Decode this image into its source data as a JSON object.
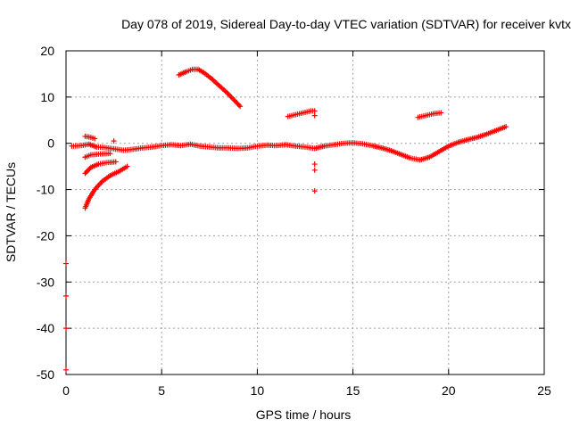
{
  "chart_data": {
    "type": "scatter",
    "title": "Day 078 of 2019, Sidereal Day-to-day VTEC variation (SDTVAR) for receiver kvtx",
    "xlabel": "GPS time / hours",
    "ylabel": "SDTVAR / TECUs",
    "xlim": [
      0,
      25
    ],
    "ylim": [
      -50,
      20
    ],
    "xticks": [
      "0",
      "5",
      "10",
      "15",
      "20",
      "25"
    ],
    "yticks": [
      "20",
      "10",
      "0",
      "-10",
      "-20",
      "-30",
      "-40",
      "-50"
    ],
    "grid": true,
    "marker": "+",
    "color": "#ff0000",
    "series": [
      {
        "name": "main-band",
        "points": [
          [
            0.3,
            -0.6
          ],
          [
            0.8,
            -0.5
          ],
          [
            1.2,
            -0.2
          ],
          [
            1.6,
            -0.8
          ],
          [
            2.0,
            -0.9
          ],
          [
            2.5,
            -1.2
          ],
          [
            3.0,
            -1.5
          ],
          [
            3.5,
            -1.3
          ],
          [
            4.0,
            -1.0
          ],
          [
            4.5,
            -0.8
          ],
          [
            5.0,
            -0.5
          ],
          [
            5.5,
            -0.3
          ],
          [
            6.0,
            -0.5
          ],
          [
            6.5,
            -0.2
          ],
          [
            7.0,
            -0.6
          ],
          [
            7.5,
            -0.8
          ],
          [
            8.0,
            -1.0
          ],
          [
            8.5,
            -1.0
          ],
          [
            9.0,
            -1.1
          ],
          [
            9.5,
            -1.0
          ],
          [
            10.0,
            -0.6
          ],
          [
            10.5,
            -0.4
          ],
          [
            11.0,
            -0.5
          ],
          [
            11.5,
            -0.3
          ],
          [
            12.0,
            -0.6
          ],
          [
            12.5,
            -0.8
          ],
          [
            13.0,
            -1.1
          ],
          [
            13.5,
            -0.6
          ],
          [
            14.0,
            -0.3
          ],
          [
            14.5,
            0.0
          ],
          [
            15.0,
            0.1
          ],
          [
            15.5,
            -0.1
          ],
          [
            16.0,
            -0.5
          ],
          [
            16.5,
            -1.0
          ],
          [
            17.0,
            -1.6
          ],
          [
            17.5,
            -2.4
          ],
          [
            18.0,
            -3.2
          ],
          [
            18.5,
            -3.6
          ],
          [
            19.0,
            -3.0
          ],
          [
            19.5,
            -1.8
          ],
          [
            20.0,
            -0.6
          ],
          [
            20.5,
            0.2
          ],
          [
            21.0,
            0.8
          ],
          [
            21.5,
            1.3
          ],
          [
            22.0,
            2.0
          ],
          [
            22.5,
            2.8
          ],
          [
            23.0,
            3.6
          ]
        ]
      },
      {
        "name": "arc-high",
        "points": [
          [
            5.9,
            14.8
          ],
          [
            6.3,
            15.5
          ],
          [
            6.6,
            16.0
          ],
          [
            6.9,
            16.0
          ],
          [
            7.2,
            15.3
          ],
          [
            7.6,
            14.0
          ],
          [
            8.0,
            12.5
          ],
          [
            8.4,
            11.0
          ],
          [
            8.8,
            9.3
          ],
          [
            9.1,
            8.0
          ]
        ]
      },
      {
        "name": "segment-mid",
        "points": [
          [
            11.6,
            5.8
          ],
          [
            12.0,
            6.2
          ],
          [
            12.4,
            6.6
          ],
          [
            12.8,
            7.0
          ],
          [
            13.0,
            7.0
          ]
        ]
      },
      {
        "name": "segment-right",
        "points": [
          [
            18.4,
            5.6
          ],
          [
            18.8,
            6.0
          ],
          [
            19.2,
            6.4
          ],
          [
            19.6,
            6.6
          ]
        ]
      },
      {
        "name": "rising-arcs",
        "points": [
          [
            1.0,
            -14.0
          ],
          [
            1.2,
            -12.0
          ],
          [
            1.5,
            -10.0
          ],
          [
            1.9,
            -8.2
          ],
          [
            2.3,
            -7.0
          ],
          [
            2.8,
            -6.0
          ],
          [
            3.2,
            -5.0
          ],
          [
            1.0,
            -6.5
          ],
          [
            1.3,
            -5.2
          ],
          [
            1.7,
            -4.5
          ],
          [
            2.1,
            -4.2
          ],
          [
            2.6,
            -4.0
          ],
          [
            1.0,
            -3.0
          ],
          [
            1.3,
            -2.5
          ],
          [
            1.8,
            -2.3
          ],
          [
            2.3,
            -2.2
          ],
          [
            1.0,
            1.5
          ],
          [
            1.3,
            1.3
          ],
          [
            1.5,
            1.0
          ]
        ]
      },
      {
        "name": "outliers",
        "points": [
          [
            0.0,
            -26.0
          ],
          [
            0.0,
            -33.0
          ],
          [
            0.0,
            -40.0
          ],
          [
            0.0,
            -49.0
          ],
          [
            13.0,
            -4.5
          ],
          [
            13.0,
            -5.8
          ],
          [
            13.0,
            -10.3
          ],
          [
            13.0,
            6.0
          ],
          [
            2.5,
            0.5
          ]
        ]
      }
    ]
  }
}
